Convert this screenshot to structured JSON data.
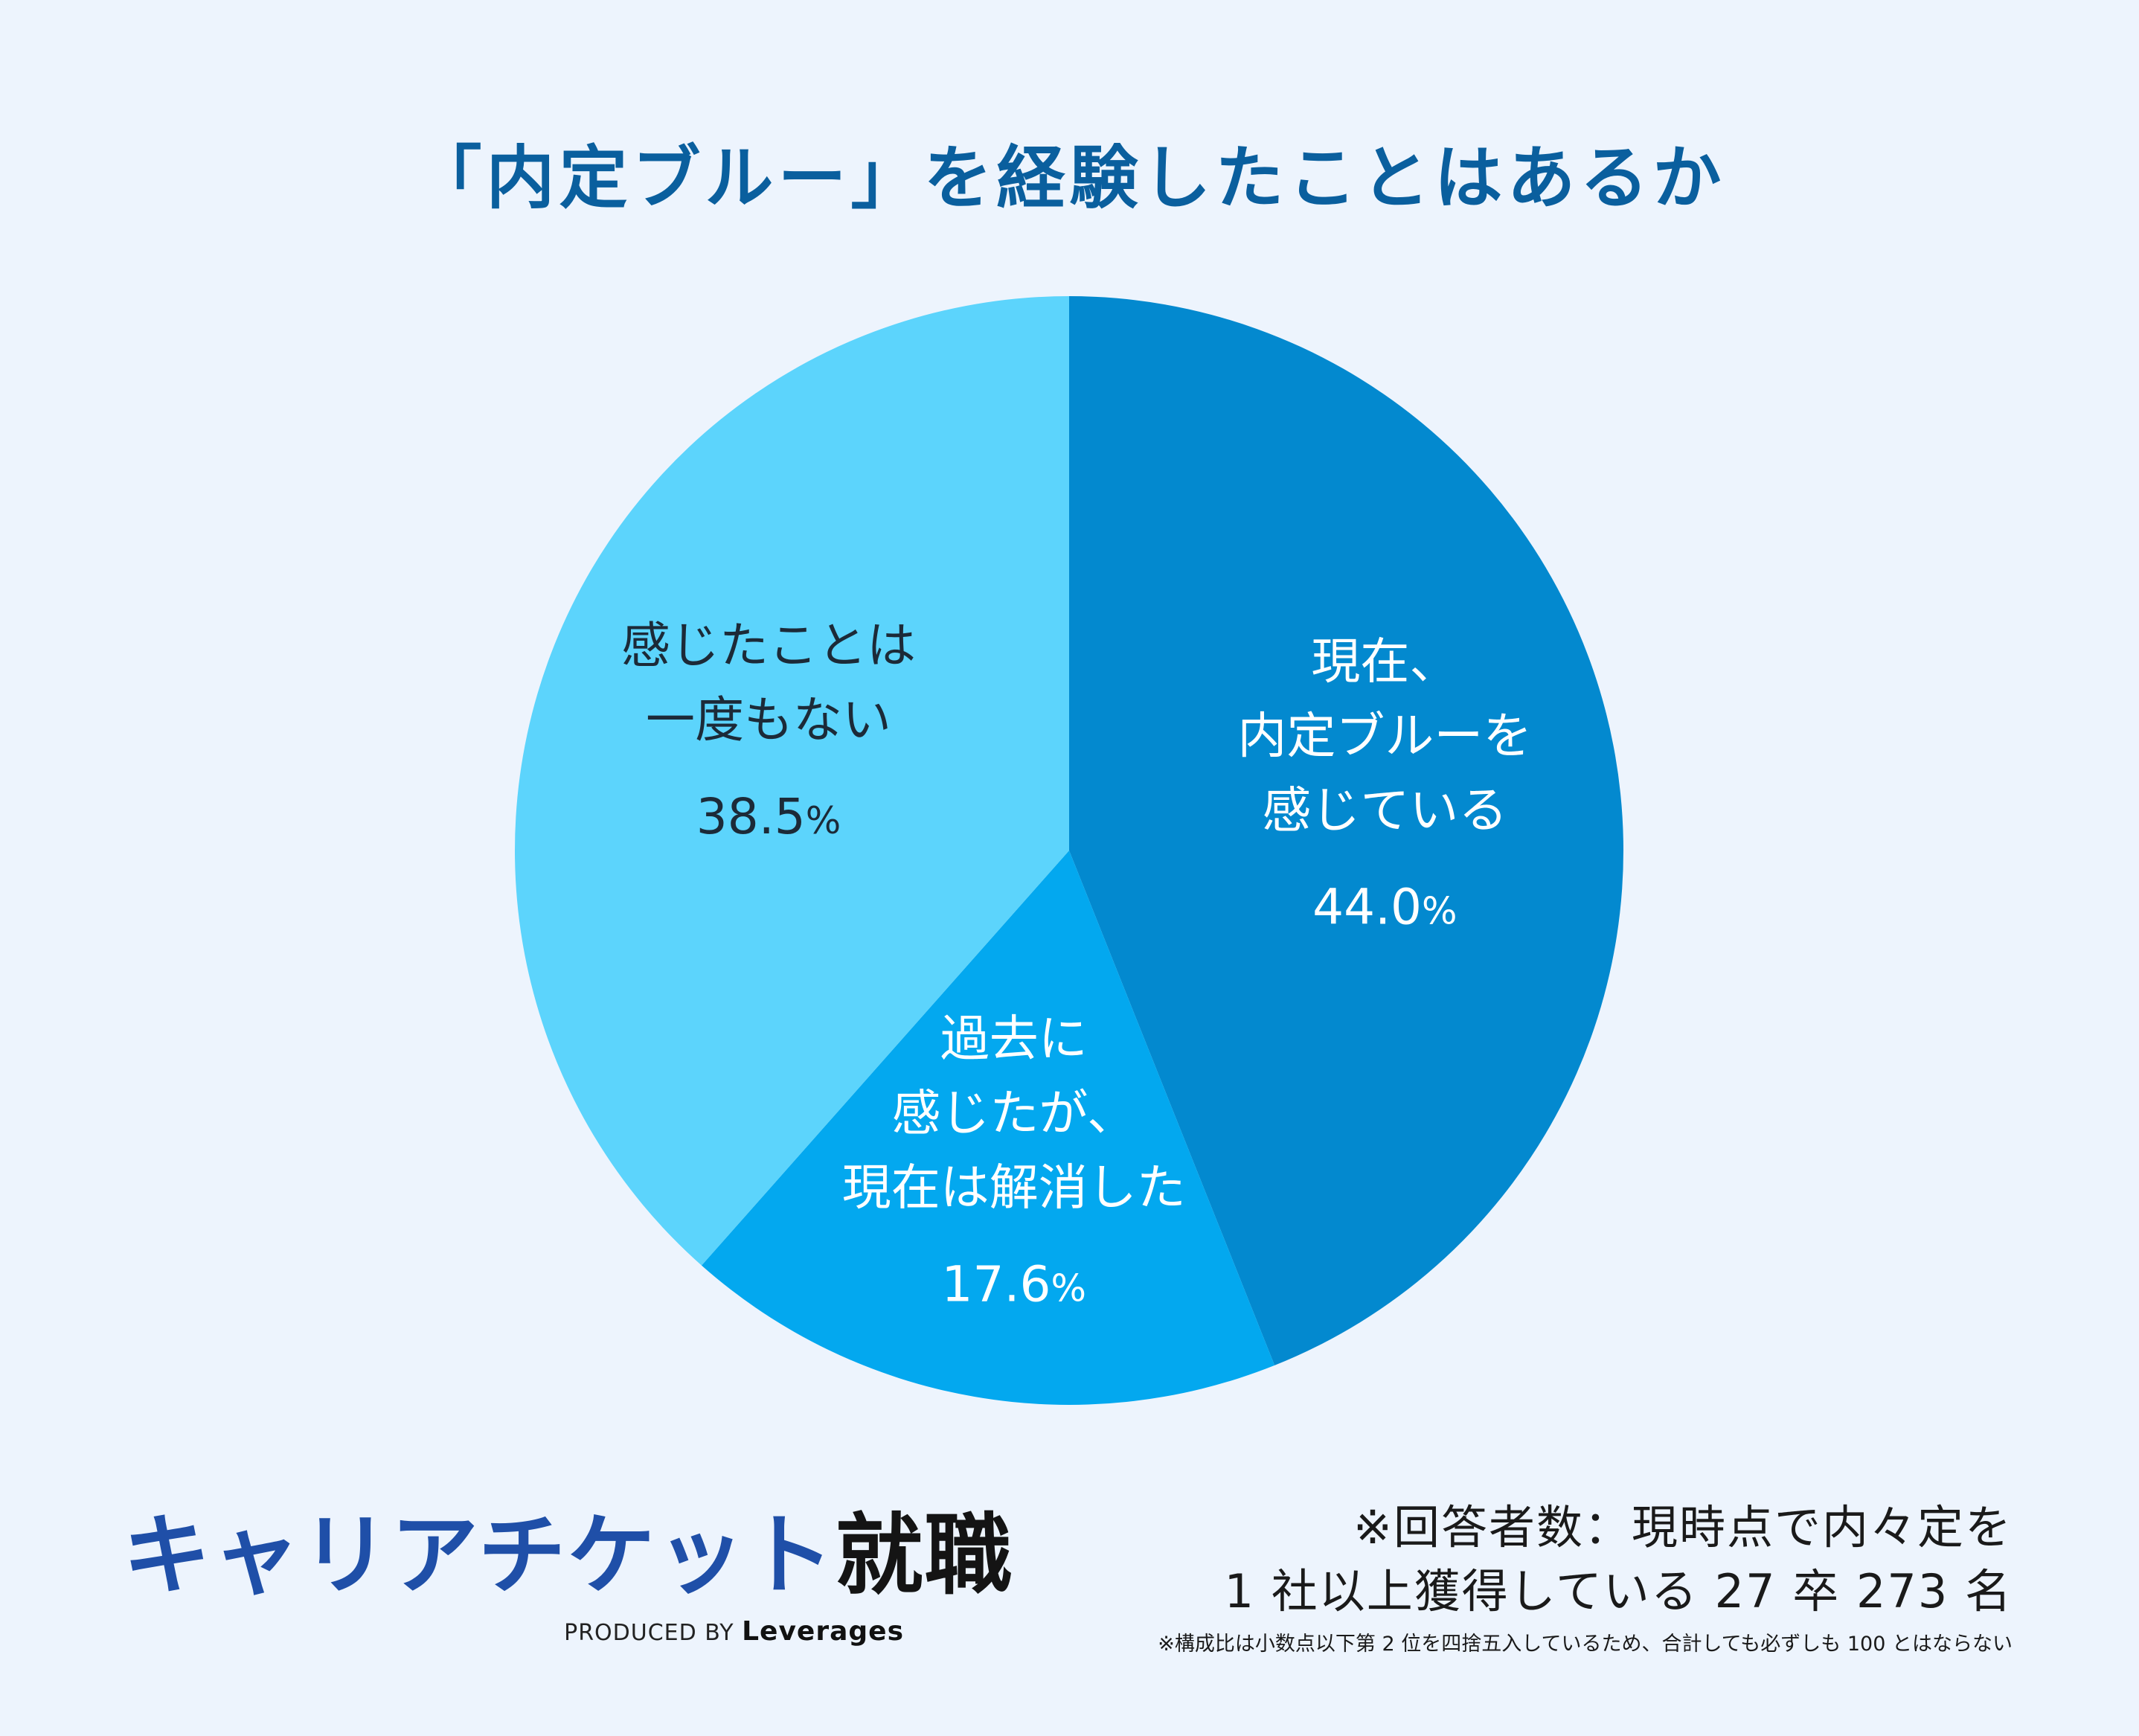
{
  "chart_data": {
    "type": "pie",
    "title": "「内定ブルー」を経験したことはあるか",
    "slices": [
      {
        "name": "現在、内定ブルーを感じている",
        "label_lines": [
          "現在、",
          "内定ブルーを",
          "感じている"
        ],
        "value": 44.0,
        "value_text": "44.0",
        "color": "#0389cf",
        "text_color": "#ffffff"
      },
      {
        "name": "過去に感じたが、現在は解消した",
        "label_lines": [
          "過去に",
          "感じたが、",
          "現在は解消した"
        ],
        "value": 17.6,
        "value_text": "17.6",
        "color": "#03a8ef",
        "text_color": "#ffffff"
      },
      {
        "name": "感じたことは一度もない",
        "label_lines": [
          "感じたことは",
          "一度もない"
        ],
        "value": 38.5,
        "value_text": "38.5",
        "color": "#5cd4fc",
        "text_color": "#1c2a38"
      }
    ],
    "unit": "%",
    "start": "12 o'clock",
    "direction": "clockwise"
  },
  "logo": {
    "brand": "キャリアチケット",
    "suffix": "就職",
    "produced_by": "PRODUCED BY",
    "company": "Leverages"
  },
  "notes": {
    "line1": "※回答者数：現時点で内々定を",
    "line2": "1 社以上獲得している 27 卒 273 名",
    "small": "※構成比は小数点以下第 2 位を四捨五入しているため、合計しても必ずしも 100 とはならない"
  },
  "colors": {
    "background": "#edf4fd",
    "title": "#0a5f9e",
    "brand": "#1f4fa8"
  }
}
